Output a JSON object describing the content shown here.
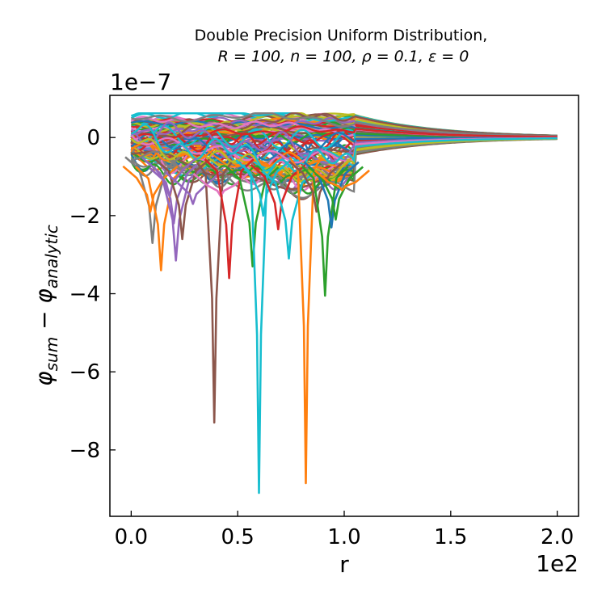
{
  "chart_data": {
    "type": "line",
    "title_line1": "Double Precision Uniform Distribution,",
    "title_line2": "R = 100, n = 100, ρ = 0.1, ε = 0",
    "xlabel": "r",
    "ylabel_main": "φ",
    "ylabel_sub1": "sum",
    "ylabel_sub2": "analytic",
    "y_offset_text": "1e−7",
    "x_offset_text": "1e2",
    "xlim": [
      -0.1,
      2.1
    ],
    "ylim": [
      -9.7,
      1.08
    ],
    "x_ticks": [
      0.0,
      0.5,
      1.0,
      1.5,
      2.0
    ],
    "x_tick_labels": [
      "0.0",
      "0.5",
      "1.0",
      "1.5",
      "2.0"
    ],
    "y_ticks": [
      0,
      -2,
      -4,
      -6,
      -8
    ],
    "y_tick_labels": [
      "0",
      "−2",
      "−4",
      "−6",
      "−8"
    ],
    "grid": false,
    "legend": "none",
    "n_series": 100,
    "palette": [
      "#1f77b4",
      "#ff7f0e",
      "#2ca02c",
      "#d62728",
      "#9467bd",
      "#8c564b",
      "#e377c2",
      "#7f7f7f",
      "#bcbd22",
      "#17becf"
    ],
    "series": [
      {
        "x": [
          0.0,
          0.1,
          0.3,
          0.5,
          0.7,
          0.9,
          1.0,
          1.2,
          1.5,
          2.0
        ],
        "y": [
          0.05,
          -0.2,
          -0.9,
          -1.0,
          -0.8,
          -0.7,
          -0.6,
          -0.2,
          -0.08,
          -0.02
        ]
      },
      {
        "x": [
          0.0,
          0.15,
          0.3,
          0.5,
          0.7,
          0.9,
          1.0,
          1.2,
          1.5,
          2.0
        ],
        "y": [
          0.15,
          0.3,
          0.45,
          0.55,
          0.5,
          0.4,
          0.3,
          0.1,
          0.05,
          0.02
        ]
      }
    ],
    "spikes": [
      {
        "x": 0.1,
        "y": -2.7,
        "color": "#7f7f7f"
      },
      {
        "x": 0.09,
        "y": -1.9,
        "color": "#ff7f0e"
      },
      {
        "x": 0.14,
        "y": -3.4,
        "color": "#ff7f0e"
      },
      {
        "x": 0.18,
        "y": -1.5,
        "color": "#9467bd"
      },
      {
        "x": 0.21,
        "y": -3.15,
        "color": "#9467bd"
      },
      {
        "x": 0.2,
        "y": -2.2,
        "color": "#9467bd"
      },
      {
        "x": 0.24,
        "y": -2.6,
        "color": "#8c564b"
      },
      {
        "x": 0.29,
        "y": -1.7,
        "color": "#9467bd"
      },
      {
        "x": 0.39,
        "y": -7.3,
        "color": "#8c564b"
      },
      {
        "x": 0.42,
        "y": -1.5,
        "color": "#e377c2"
      },
      {
        "x": 0.46,
        "y": -3.6,
        "color": "#d62728"
      },
      {
        "x": 0.57,
        "y": -3.3,
        "color": "#2ca02c"
      },
      {
        "x": 0.6,
        "y": -9.1,
        "color": "#17becf"
      },
      {
        "x": 0.62,
        "y": -2.0,
        "color": "#17becf"
      },
      {
        "x": 0.69,
        "y": -2.35,
        "color": "#d62728"
      },
      {
        "x": 0.74,
        "y": -3.1,
        "color": "#17becf"
      },
      {
        "x": 0.82,
        "y": -8.85,
        "color": "#ff7f0e"
      },
      {
        "x": 0.87,
        "y": -1.9,
        "color": "#8c564b"
      },
      {
        "x": 0.91,
        "y": -4.05,
        "color": "#2ca02c"
      },
      {
        "x": 0.94,
        "y": -2.3,
        "color": "#1f77b4"
      },
      {
        "x": 0.96,
        "y": -2.1,
        "color": "#2ca02c"
      },
      {
        "x": 0.99,
        "y": -1.35,
        "color": "#ff7f0e"
      }
    ]
  }
}
